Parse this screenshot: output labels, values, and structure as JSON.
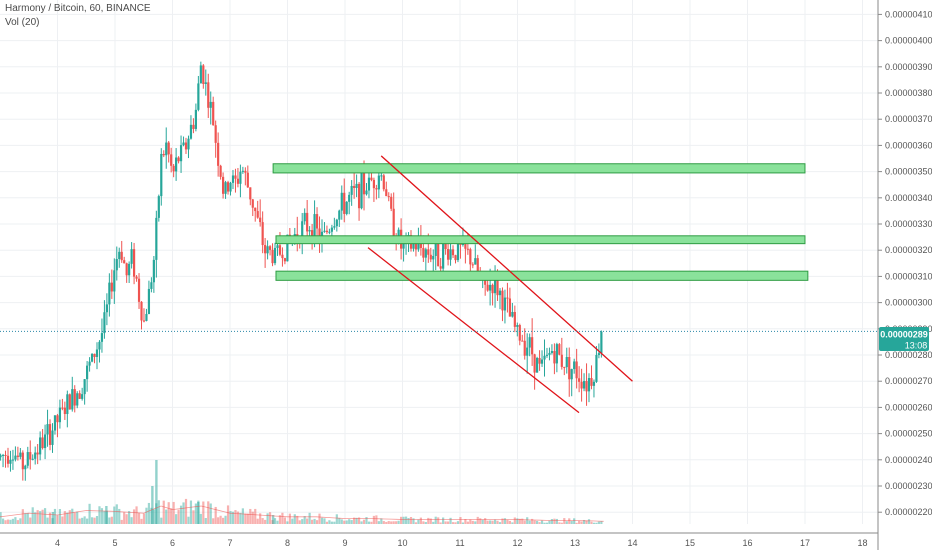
{
  "header": {
    "symbol_line": "Harmony / Bitcoin, 60, BINANCE",
    "volume_line": "Vol (20)"
  },
  "price_tag": {
    "value": "0.00000289",
    "countdown": "13:08"
  },
  "colors": {
    "up": "#26a69a",
    "down": "#ef5350",
    "zone_fill": "#8ae29b",
    "zone_stroke": "#2e9c43",
    "channel": "#e0141a",
    "price_line": "#2a88a8",
    "tag_bg": "#26a69a",
    "grid": "#eef0f3",
    "axis": "#8a8a8a"
  },
  "chart_data": {
    "type": "candlestick",
    "y_axis": {
      "ticks": [
        "0.00000220",
        "0.00000230",
        "0.00000240",
        "0.00000250",
        "0.00000260",
        "0.00000270",
        "0.00000280",
        "0.00000290",
        "0.00000300",
        "0.00000310",
        "0.00000320",
        "0.00000330",
        "0.00000340",
        "0.00000350",
        "0.00000360",
        "0.00000370",
        "0.00000380",
        "0.00000390",
        "0.00000400",
        "0.00000410"
      ],
      "range": [
        2.155e-06,
        4.155e-06
      ],
      "position": "right"
    },
    "x_axis": {
      "ticks": [
        "4",
        "5",
        "6",
        "7",
        "8",
        "9",
        "10",
        "11",
        "12",
        "13",
        "14",
        "15",
        "16",
        "17",
        "18"
      ],
      "tick_values": [
        4,
        5,
        6,
        7,
        8,
        9,
        10,
        11,
        12,
        13,
        14,
        15,
        16,
        17,
        18
      ],
      "range": [
        3.0,
        18.27
      ]
    },
    "grid": true,
    "current_price": 2.89e-06,
    "price_anchors": [
      [
        3.0,
        2.41
      ],
      [
        3.2,
        2.44
      ],
      [
        3.4,
        2.38
      ],
      [
        3.6,
        2.43
      ],
      [
        3.8,
        2.48
      ],
      [
        4.0,
        2.55
      ],
      [
        4.2,
        2.62
      ],
      [
        4.4,
        2.68
      ],
      [
        4.6,
        2.78
      ],
      [
        4.8,
        2.9
      ],
      [
        5.0,
        3.15
      ],
      [
        5.1,
        3.22
      ],
      [
        5.2,
        3.1
      ],
      [
        5.3,
        3.18
      ],
      [
        5.4,
        3.05
      ],
      [
        5.5,
        2.92
      ],
      [
        5.6,
        3.05
      ],
      [
        5.7,
        3.2
      ],
      [
        5.8,
        3.55
      ],
      [
        5.9,
        3.6
      ],
      [
        6.0,
        3.48
      ],
      [
        6.1,
        3.55
      ],
      [
        6.2,
        3.58
      ],
      [
        6.4,
        3.72
      ],
      [
        6.5,
        3.92
      ],
      [
        6.6,
        3.8
      ],
      [
        6.7,
        3.7
      ],
      [
        6.8,
        3.55
      ],
      [
        6.9,
        3.4
      ],
      [
        7.0,
        3.47
      ],
      [
        7.1,
        3.45
      ],
      [
        7.2,
        3.52
      ],
      [
        7.4,
        3.38
      ],
      [
        7.6,
        3.2
      ],
      [
        7.8,
        3.18
      ],
      [
        8.0,
        3.22
      ],
      [
        8.2,
        3.28
      ],
      [
        8.4,
        3.3
      ],
      [
        8.6,
        3.24
      ],
      [
        8.8,
        3.32
      ],
      [
        9.0,
        3.38
      ],
      [
        9.2,
        3.42
      ],
      [
        9.4,
        3.45
      ],
      [
        9.6,
        3.5
      ],
      [
        9.7,
        3.45
      ],
      [
        9.8,
        3.32
      ],
      [
        10.0,
        3.2
      ],
      [
        10.2,
        3.22
      ],
      [
        10.4,
        3.2
      ],
      [
        10.6,
        3.18
      ],
      [
        10.8,
        3.2
      ],
      [
        11.0,
        3.2
      ],
      [
        11.2,
        3.17
      ],
      [
        11.4,
        3.05
      ],
      [
        11.6,
        3.08
      ],
      [
        11.8,
        2.98
      ],
      [
        12.0,
        2.88
      ],
      [
        12.2,
        2.84
      ],
      [
        12.4,
        2.74
      ],
      [
        12.6,
        2.82
      ],
      [
        12.8,
        2.78
      ],
      [
        13.0,
        2.74
      ],
      [
        13.2,
        2.7
      ],
      [
        13.3,
        2.72
      ],
      [
        13.4,
        2.8
      ],
      [
        13.45,
        2.9
      ],
      [
        13.5,
        2.89
      ]
    ],
    "volume_anchors": [
      [
        3.0,
        8
      ],
      [
        3.5,
        12
      ],
      [
        4.0,
        10
      ],
      [
        4.5,
        15
      ],
      [
        5.0,
        14
      ],
      [
        5.5,
        12
      ],
      [
        5.8,
        20
      ],
      [
        6.0,
        16
      ],
      [
        6.5,
        20
      ],
      [
        7.0,
        12
      ],
      [
        7.5,
        10
      ],
      [
        8.0,
        8
      ],
      [
        8.5,
        8
      ],
      [
        9.0,
        6
      ],
      [
        9.5,
        6
      ],
      [
        10.0,
        5
      ],
      [
        10.5,
        5
      ],
      [
        11.0,
        5
      ],
      [
        11.5,
        5
      ],
      [
        12.0,
        5
      ],
      [
        12.5,
        4
      ],
      [
        13.0,
        4
      ],
      [
        13.5,
        3
      ]
    ],
    "volume_spikes": [
      [
        5.72,
        64
      ],
      [
        5.65,
        38
      ],
      [
        6.45,
        22
      ],
      [
        4.85,
        18
      ],
      [
        3.92,
        12
      ],
      [
        7.75,
        9
      ]
    ],
    "support_resistance_zones": [
      {
        "x_start": 7.75,
        "x_end": 17.0,
        "y_low": 3.495e-06,
        "y_high": 3.53e-06
      },
      {
        "x_start": 7.8,
        "x_end": 17.0,
        "y_low": 3.225e-06,
        "y_high": 3.255e-06
      },
      {
        "x_start": 7.8,
        "x_end": 17.05,
        "y_low": 3.085e-06,
        "y_high": 3.12e-06
      }
    ],
    "channel_lines": [
      {
        "x1": 9.63,
        "y1": 3.56e-06,
        "x2": 14.0,
        "y2": 2.7e-06
      },
      {
        "x1": 9.4,
        "y1": 3.21e-06,
        "x2": 13.07,
        "y2": 2.58e-06
      }
    ]
  }
}
